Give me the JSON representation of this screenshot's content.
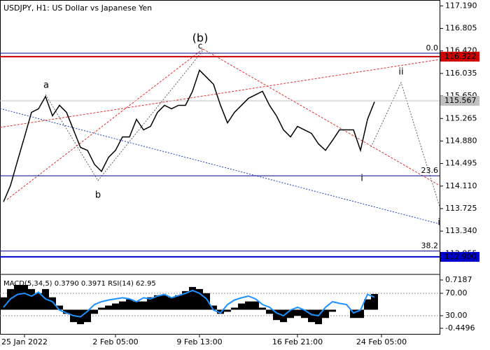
{
  "chart_data": [
    {
      "type": "line",
      "title": "USDJPY, H1:  US Dollar vs Japanese Yen",
      "color": "#000000",
      "categories": [
        null,
        null,
        null,
        "25 Jan 2022",
        null,
        null,
        null,
        null,
        null,
        null,
        null,
        null,
        null,
        null,
        null,
        null,
        "2 Feb 05:00",
        null,
        null,
        null,
        null,
        null,
        null,
        null,
        null,
        null,
        null,
        null,
        "9 Feb 13:00",
        null,
        null,
        null,
        null,
        null,
        null,
        null,
        null,
        null,
        null,
        null,
        null,
        null,
        "16 Feb 21:00",
        null,
        null,
        null,
        null,
        null,
        null,
        null,
        null,
        null,
        null,
        null,
        "24 Feb 05:00"
      ],
      "values": [
        113.84,
        114.12,
        114.54,
        114.95,
        115.37,
        115.43,
        115.64,
        115.31,
        115.49,
        115.37,
        115.07,
        114.77,
        114.72,
        114.48,
        114.36,
        114.6,
        114.72,
        114.95,
        114.95,
        115.25,
        115.07,
        115.13,
        115.37,
        115.49,
        115.43,
        115.49,
        115.49,
        115.73,
        116.09,
        115.97,
        115.85,
        115.49,
        115.19,
        115.37,
        115.49,
        115.61,
        115.67,
        115.73,
        115.49,
        115.31,
        115.07,
        114.95,
        115.13,
        115.07,
        115.01,
        114.83,
        114.72,
        114.89,
        115.07,
        115.07,
        115.07,
        114.72,
        115.25,
        115.55,
        null
      ],
      "ylim": [
        112.6,
        117.29
      ],
      "yticks": [
        {
          "value": 117.19,
          "label": "117.190"
        },
        116.805,
        {
          "value": 116.42,
          "label": "116.420"
        },
        116.035,
        {
          "value": 115.65,
          "label": "115.650"
        },
        115.265,
        {
          "value": 114.88,
          "label": "114.880"
        },
        114.495,
        {
          "value": 114.11,
          "label": "114.110"
        },
        113.725,
        {
          "value": 113.34,
          "label": "113.340"
        },
        112.955
      ],
      "levels": [
        {
          "label": "0.0",
          "value": 116.38,
          "color": "#000080"
        },
        {
          "label": "23.6",
          "value": 114.285,
          "color": "#000080"
        },
        {
          "label": "38.2",
          "value": 113.0,
          "color": "#000080"
        }
      ],
      "price_labels": [
        {
          "label": "116.322",
          "value": 116.322,
          "color": "#cc0000"
        },
        {
          "label": "115.567",
          "value": 115.567,
          "color": "#c0c0c0"
        },
        {
          "label": "112.900",
          "value": 112.9,
          "color": "#0000cc"
        }
      ],
      "annotations": [
        {
          "text": "(b)",
          "color": "#e00000"
        },
        {
          "text": "c",
          "color": "#808080"
        },
        {
          "text": "a",
          "color": "#808080"
        },
        {
          "text": "b",
          "color": "#808080"
        },
        {
          "text": "i",
          "color": "#808080"
        },
        {
          "text": "ii",
          "color": "#808080"
        },
        {
          "text": "i",
          "color": "#808080"
        }
      ]
    },
    {
      "type": "macd",
      "title": "MACD(5,34,5) 0.3790 0.3971 RSI(14) 62.95",
      "series": [
        {
          "kind": "bar",
          "color": "#000000",
          "values": [
            0.3,
            0.5,
            0.6,
            0.6,
            0.5,
            0.4,
            0.5,
            0.3,
            0.1,
            -0.1,
            -0.3,
            -0.35,
            -0.3,
            -0.1,
            0.05,
            0.1,
            0.15,
            0.2,
            0.25,
            0.2,
            0.2,
            0.3,
            0.35,
            0.35,
            0.3,
            0.35,
            0.45,
            0.55,
            0.5,
            0.4,
            0.1,
            -0.1,
            -0.05,
            0.05,
            0.15,
            0.2,
            0.2,
            0.05,
            -0.1,
            -0.25,
            -0.3,
            -0.2,
            -0.15,
            -0.2,
            -0.3,
            -0.35,
            -0.2,
            -0.05,
            0.0,
            0.0,
            -0.2,
            -0.2,
            0.25,
            0.38
          ]
        },
        {
          "kind": "line",
          "axis": "y2",
          "color": "#1e90ff",
          "values": [
            45,
            60,
            68,
            70,
            65,
            72,
            60,
            55,
            40,
            35,
            30,
            28,
            38,
            50,
            55,
            58,
            60,
            62,
            60,
            55,
            62,
            60,
            65,
            68,
            62,
            66,
            70,
            75,
            70,
            60,
            40,
            35,
            50,
            58,
            62,
            65,
            60,
            50,
            45,
            35,
            30,
            40,
            45,
            40,
            32,
            30,
            45,
            55,
            52,
            50,
            35,
            40,
            68,
            63
          ]
        }
      ],
      "ylim": [
        -0.602,
        0.854
      ],
      "yticks": [
        0.7187,
        -0.4496
      ],
      "y2lim": [
        -3.75,
        103.75
      ],
      "y2ticks": [
        {
          "value": 70,
          "label": "70.00"
        },
        {
          "value": 30,
          "label": "30.00"
        }
      ]
    }
  ]
}
